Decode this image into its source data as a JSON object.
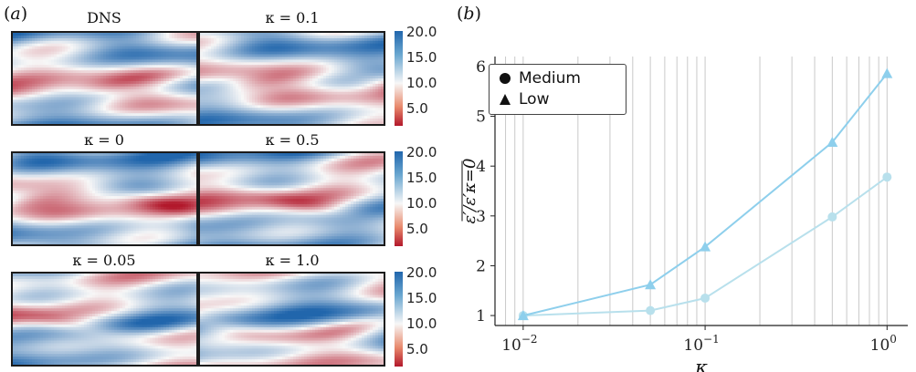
{
  "panel_a": {
    "label": "a",
    "fields": [
      {
        "title": "DNS",
        "kappa": null
      },
      {
        "title": "κ = 0.1",
        "kappa": 0.1
      },
      {
        "title": "κ = 0",
        "kappa": 0
      },
      {
        "title": "κ = 0.5",
        "kappa": 0.5
      },
      {
        "title": "κ = 0.05",
        "kappa": 0.05
      },
      {
        "title": "κ = 1.0",
        "kappa": 1.0
      }
    ],
    "colorbar_ticks": [
      "20.0",
      "15.0",
      "10.0",
      "5.0"
    ],
    "colormap": {
      "low": "#b2182b",
      "mid": "#f7f7f7",
      "high": "#2166ac"
    }
  },
  "panel_b": {
    "label": "b",
    "legend": [
      "Medium",
      "Low"
    ]
  },
  "chart_data": {
    "type": "line",
    "title": "",
    "xlabel": "κ",
    "ylabel": "ε′/ε′κ=0",
    "xscale": "log",
    "xlim": [
      0.007,
      1.3
    ],
    "ylim": [
      0.8,
      6.2
    ],
    "x_tick_labels": [
      "10−2",
      "10−1",
      "100"
    ],
    "y_ticks": [
      1,
      2,
      3,
      4,
      5,
      6
    ],
    "grid": "vertical",
    "legend_position": "top-left",
    "series": [
      {
        "name": "Medium",
        "marker": "circle",
        "color": "#b8e0ec",
        "x": [
          0.01,
          0.05,
          0.1,
          0.5,
          1.0
        ],
        "y": [
          1.0,
          1.1,
          1.35,
          2.98,
          3.78
        ]
      },
      {
        "name": "Low",
        "marker": "triangle",
        "color": "#8ecfec",
        "x": [
          0.01,
          0.05,
          0.1,
          0.5,
          1.0
        ],
        "y": [
          1.0,
          1.62,
          2.38,
          4.48,
          5.86
        ]
      }
    ]
  }
}
